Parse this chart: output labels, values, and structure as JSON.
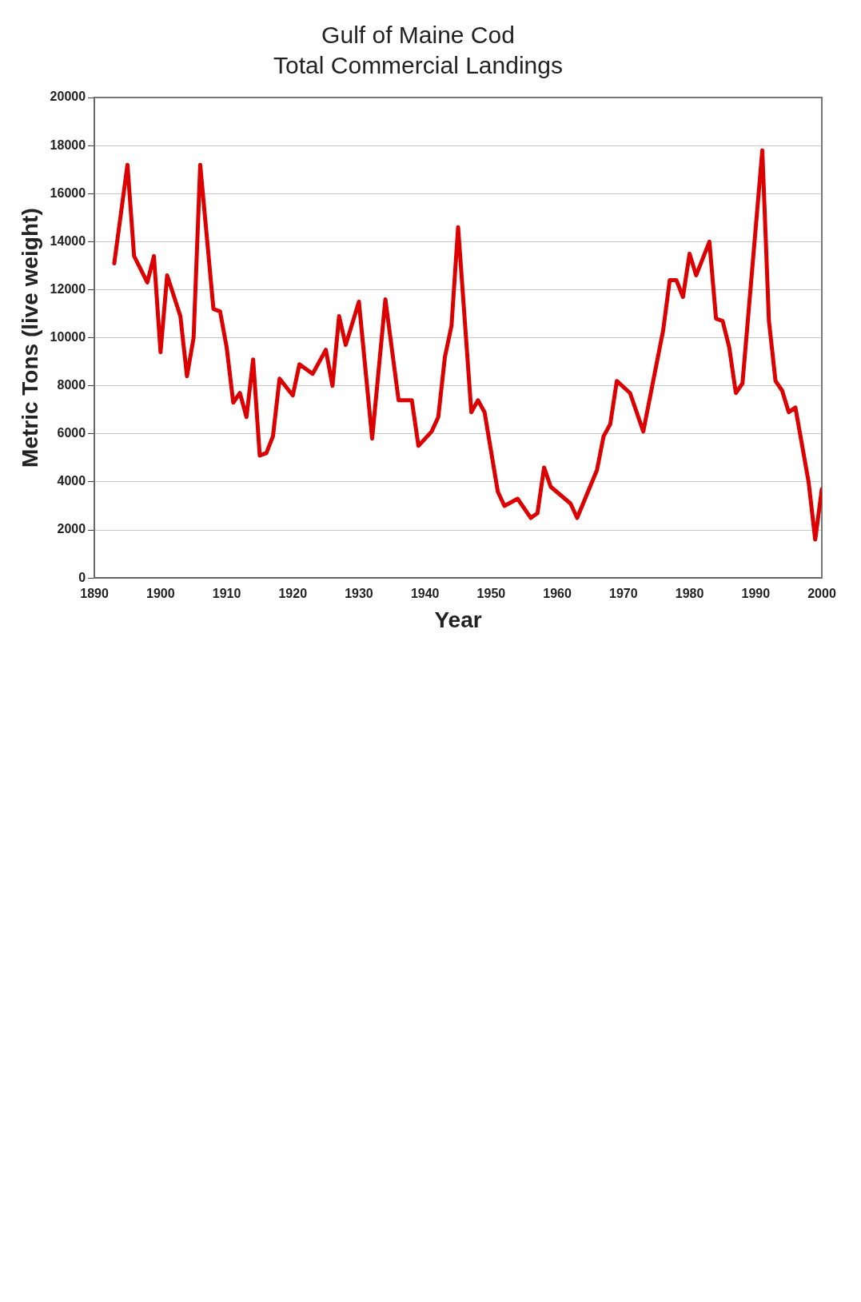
{
  "chart_data": {
    "type": "line",
    "title": "Gulf of Maine Cod",
    "subtitle": "Total Commercial Landings",
    "xlabel": "Year",
    "ylabel": "Metric Tons (live weight)",
    "x": [
      1893,
      1895,
      1896,
      1898,
      1899,
      1900,
      1901,
      1903,
      1904,
      1905,
      1906,
      1908,
      1909,
      1910,
      1911,
      1912,
      1913,
      1914,
      1915,
      1916,
      1917,
      1918,
      1920,
      1921,
      1923,
      1925,
      1926,
      1927,
      1928,
      1930,
      1932,
      1934,
      1936,
      1938,
      1939,
      1941,
      1942,
      1943,
      1944,
      1945,
      1947,
      1948,
      1949,
      1951,
      1952,
      1954,
      1956,
      1957,
      1958,
      1959,
      1962,
      1963,
      1966,
      1967,
      1968,
      1969,
      1971,
      1973,
      1976,
      1977,
      1978,
      1979,
      1980,
      1981,
      1983,
      1984,
      1985,
      1986,
      1987,
      1988,
      1991,
      1992,
      1993,
      1994,
      1995,
      1996,
      1998,
      1999,
      2000
    ],
    "series": [
      {
        "color": "#dd0000",
        "values": [
          13100,
          17200,
          13400,
          12300,
          13400,
          9400,
          12600,
          10900,
          8400,
          10000,
          17200,
          11200,
          11100,
          9600,
          7300,
          7700,
          6700,
          9100,
          5100,
          5200,
          5900,
          8300,
          7600,
          8900,
          8500,
          9500,
          8000,
          10900,
          9700,
          11500,
          5800,
          11600,
          7400,
          7400,
          5500,
          6100,
          6700,
          9200,
          10500,
          14600,
          6900,
          7400,
          6900,
          3600,
          3000,
          3300,
          2500,
          2700,
          4600,
          3800,
          3100,
          2500,
          4500,
          5900,
          6400,
          8200,
          7700,
          6100,
          10300,
          12400,
          12400,
          11700,
          13500,
          12600,
          14000,
          10800,
          10700,
          9600,
          7700,
          8100,
          17800,
          10700,
          8200,
          7800,
          6900,
          7100,
          4000,
          1600,
          3700
        ]
      }
    ],
    "xlim": [
      1890,
      2000
    ],
    "xticks": [
      1890,
      1900,
      1910,
      1920,
      1930,
      1940,
      1950,
      1960,
      1970,
      1980,
      1990,
      2000
    ],
    "ylim": [
      0,
      20000
    ],
    "yticks": [
      0,
      2000,
      4000,
      6000,
      8000,
      10000,
      12000,
      14000,
      16000,
      18000,
      20000
    ],
    "grid": "y",
    "legend": false,
    "marker": "none",
    "line_style": "solid"
  }
}
